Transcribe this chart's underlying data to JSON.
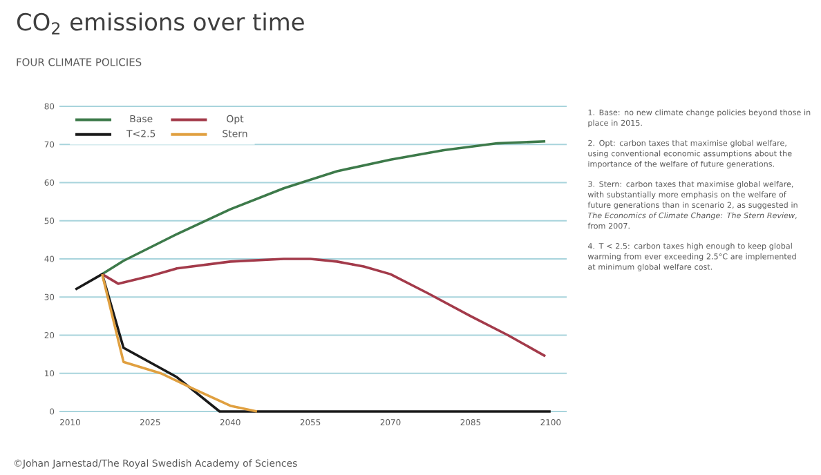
{
  "chart_data": {
    "type": "line",
    "title": "CO$_{2}$ emissions over time",
    "subtitle": "FOUR CLIMATE POLICIES",
    "xlim": [
      2008,
      2103
    ],
    "xticks": [
      2010,
      2025,
      2040,
      2055,
      2070,
      2085,
      2100
    ],
    "ylim": [
      0,
      80
    ],
    "yticks": [
      0,
      10,
      20,
      30,
      40,
      50,
      60,
      70,
      80
    ],
    "grid": "y",
    "legend": "top left",
    "marker": "none",
    "line_style": "solid",
    "series": [
      {
        "name": "Base",
        "color": "#3d7a4a",
        "x": [
          2016,
          2020,
          2030,
          2040,
          2050,
          2060,
          2070,
          2080,
          2090,
          2099
        ],
        "values": [
          36,
          39.5,
          46.5,
          53,
          58.5,
          63,
          66,
          68.5,
          70.3,
          70.8
        ]
      },
      {
        "name": "Opt",
        "color": "#a33a4a",
        "x": [
          2016,
          2019,
          2025,
          2030,
          2040,
          2050,
          2055,
          2060,
          2065,
          2070,
          2077,
          2085,
          2092,
          2099
        ],
        "values": [
          36,
          33.5,
          35.5,
          37.5,
          39.3,
          40,
          40,
          39.3,
          38,
          36,
          31,
          25,
          20,
          14.5
        ]
      },
      {
        "name": "T<2.5",
        "color": "#1a1a1a",
        "x": [
          2011,
          2016,
          2020,
          2030,
          2038,
          2100
        ],
        "values": [
          32,
          36,
          16.7,
          9,
          0,
          0
        ]
      },
      {
        "name": "Stern",
        "color": "#e0a040",
        "x": [
          2016,
          2020,
          2027,
          2033,
          2040,
          2045
        ],
        "values": [
          36,
          13,
          10,
          6,
          1.5,
          0
        ]
      }
    ],
    "annotations": [
      "1. Base: no new climate change policies beyond those in place in 2015.",
      "2. Opt: carbon taxes that maximise global welfare, using conventional economic assumptions about the importance of the welfare of future generations.",
      "3. Stern: carbon taxes that maximise global welfare, with substantially more emphasis on the welfare of future generations than in scenario 2, as suggested in *The Economics of Climate Change: The Stern Review*, from 2007.",
      "4. T < 2.5: carbon taxes high enough to keep global warming from ever exceeding 2.5°C are implemented at minimum global welfare cost.",
      "©Johan Jarnestad/The Royal Swedish Academy of Sciences"
    ]
  }
}
